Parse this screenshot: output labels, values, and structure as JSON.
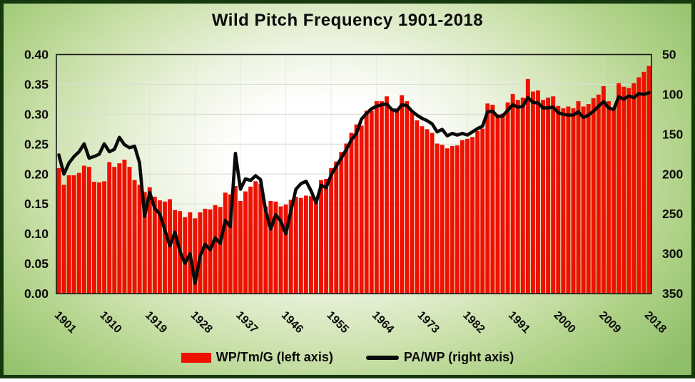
{
  "title": "Wild Pitch Frequency 1901-2018",
  "legend": {
    "bar_label": "WP/Tm/G (left axis)",
    "line_label": "PA/WP (right axis)"
  },
  "colors": {
    "bar_red": "#ee1100",
    "line_black": "#0a0a0a",
    "plot_border": "#1a1a1a",
    "gridline": "#dbdfd3",
    "frame_green_dark": "#16380f",
    "background_green": "#8fbf6a",
    "text": "#0b0b0b"
  },
  "chart_data": {
    "type": "bar",
    "subtype": "combo bar+line, dual axis",
    "title": "Wild Pitch Frequency 1901-2018",
    "x_start_year": 1901,
    "x_end_year": 2018,
    "x_tick_labels": [
      "1901",
      "1910",
      "1919",
      "1928",
      "1937",
      "1946",
      "1955",
      "1964",
      "1973",
      "1982",
      "1991",
      "2000",
      "2009",
      "2018"
    ],
    "left_axis": {
      "title": "WP/Tm/G",
      "min": 0.0,
      "max": 0.4,
      "tick_step": 0.05,
      "tick_labels": [
        "0.40",
        "0.35",
        "0.30",
        "0.25",
        "0.20",
        "0.15",
        "0.10",
        "0.05",
        "0.00"
      ]
    },
    "right_axis": {
      "title": "PA/WP",
      "min": 50,
      "max": 350,
      "tick_step": 50,
      "inverted": true,
      "tick_labels": [
        "50",
        "100",
        "150",
        "200",
        "250",
        "300",
        "350"
      ]
    },
    "grid": true,
    "legend_position": "bottom",
    "series": [
      {
        "name": "WP/Tm/G (left axis)",
        "type": "bar",
        "axis": "left",
        "color": "#ee1100",
        "values": [
          0.21,
          0.182,
          0.198,
          0.198,
          0.202,
          0.214,
          0.212,
          0.187,
          0.186,
          0.188,
          0.22,
          0.212,
          0.218,
          0.224,
          0.212,
          0.19,
          0.182,
          0.17,
          0.178,
          0.162,
          0.156,
          0.154,
          0.158,
          0.14,
          0.138,
          0.128,
          0.136,
          0.126,
          0.136,
          0.142,
          0.141,
          0.148,
          0.145,
          0.169,
          0.166,
          0.18,
          0.155,
          0.171,
          0.179,
          0.188,
          0.184,
          0.146,
          0.155,
          0.154,
          0.146,
          0.149,
          0.157,
          0.162,
          0.16,
          0.164,
          0.163,
          0.152,
          0.19,
          0.192,
          0.21,
          0.221,
          0.237,
          0.251,
          0.269,
          0.283,
          0.281,
          0.306,
          0.306,
          0.322,
          0.322,
          0.33,
          0.308,
          0.31,
          0.332,
          0.322,
          0.306,
          0.29,
          0.28,
          0.275,
          0.269,
          0.251,
          0.249,
          0.243,
          0.247,
          0.248,
          0.257,
          0.259,
          0.262,
          0.272,
          0.276,
          0.318,
          0.316,
          0.3,
          0.301,
          0.32,
          0.334,
          0.324,
          0.328,
          0.359,
          0.338,
          0.34,
          0.324,
          0.328,
          0.33,
          0.314,
          0.31,
          0.313,
          0.31,
          0.322,
          0.313,
          0.317,
          0.327,
          0.333,
          0.347,
          0.322,
          0.31,
          0.352,
          0.346,
          0.344,
          0.352,
          0.362,
          0.371,
          0.381
        ]
      },
      {
        "name": "PA/WP (right axis)",
        "type": "line",
        "axis": "right",
        "color": "#0a0a0a",
        "values": [
          176,
          200,
          186,
          178,
          172,
          162,
          180,
          178,
          175,
          162,
          172,
          169,
          154,
          163,
          167,
          165,
          186,
          253,
          223,
          243,
          250,
          270,
          290,
          273,
          297,
          312,
          300,
          337,
          303,
          288,
          295,
          280,
          287,
          258,
          266,
          174,
          219,
          206,
          208,
          202,
          207,
          246,
          269,
          251,
          259,
          275,
          246,
          219,
          212,
          209,
          221,
          236,
          214,
          217,
          201,
          190,
          180,
          169,
          157,
          149,
          131,
          124,
          118,
          115,
          113,
          112,
          119,
          121,
          113,
          114,
          121,
          126,
          130,
          133,
          137,
          147,
          144,
          152,
          149,
          151,
          149,
          151,
          147,
          143,
          140,
          122,
          121,
          128,
          127,
          120,
          113,
          116,
          115,
          104,
          110,
          111,
          117,
          117,
          116,
          123,
          125,
          126,
          126,
          122,
          129,
          126,
          121,
          115,
          109,
          117,
          119,
          103,
          106,
          102,
          104,
          99,
          100,
          98
        ]
      }
    ]
  }
}
